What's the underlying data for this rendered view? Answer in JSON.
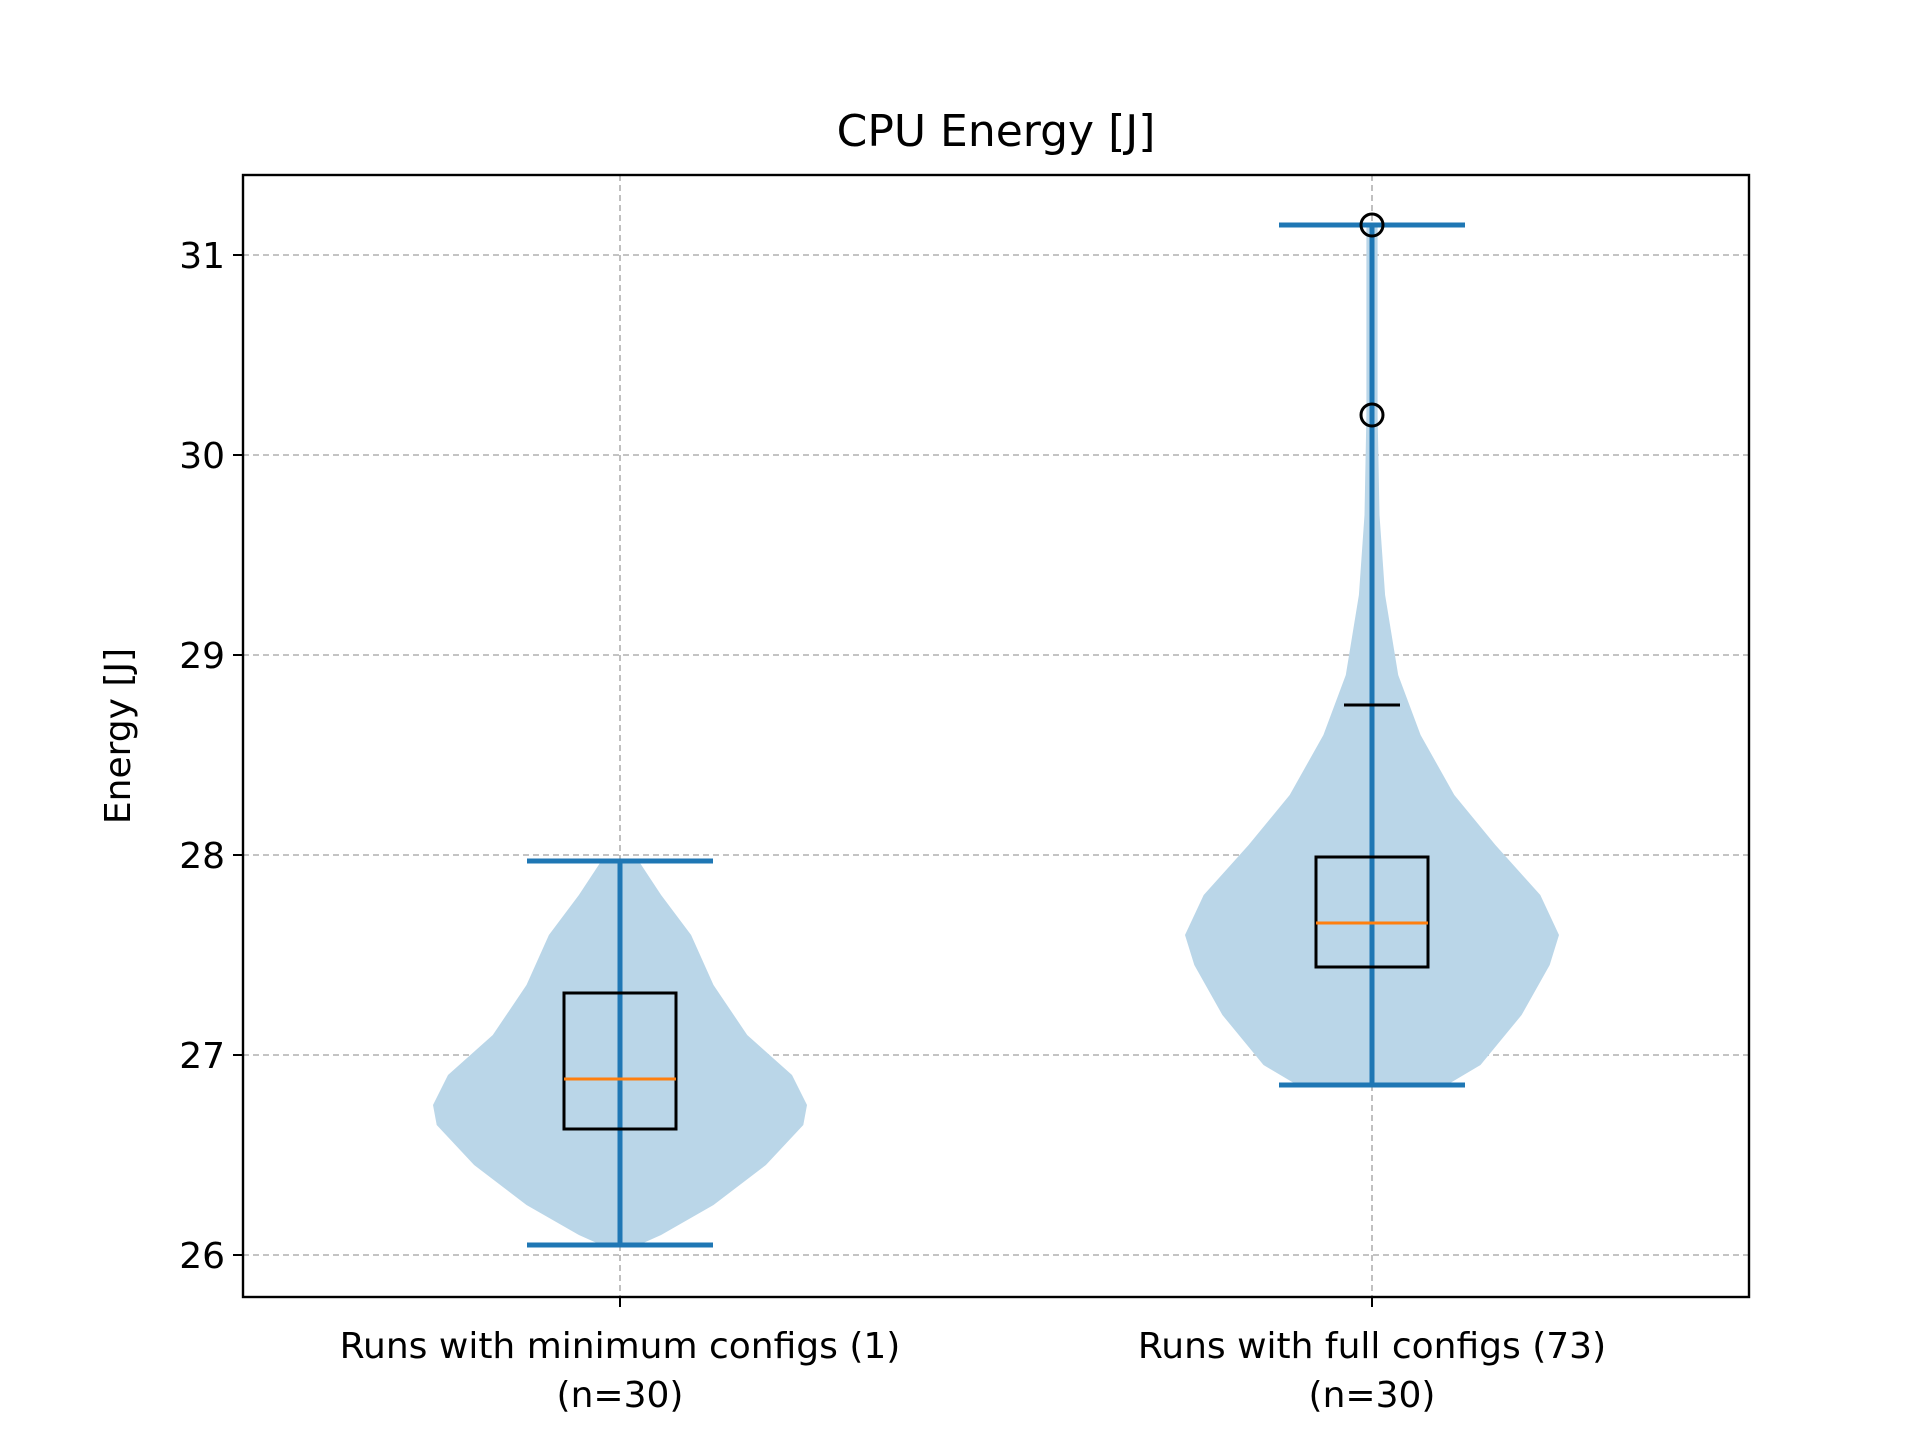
{
  "chart_data": {
    "type": "violin",
    "title": "CPU Energy [J]",
    "ylabel": "Energy [J]",
    "xlabel": "",
    "ylim": [
      25.79,
      31.4
    ],
    "yticks": [
      26,
      27,
      28,
      29,
      30,
      31
    ],
    "grid": true,
    "categories": [
      {
        "line1": "Runs with minimum configs (1)",
        "line2": "(n=30)"
      },
      {
        "line1": "Runs with full configs (73)",
        "line2": "(n=30)"
      }
    ],
    "series": [
      {
        "min": 26.05,
        "max": 27.97,
        "q1": 26.63,
        "median": 26.88,
        "q3": 27.31,
        "whisker_low": 26.05,
        "whisker_high": 27.97,
        "outliers": [],
        "density": [
          [
            26.05,
            0.1
          ],
          [
            26.1,
            0.22
          ],
          [
            26.25,
            0.5
          ],
          [
            26.45,
            0.78
          ],
          [
            26.65,
            0.98
          ],
          [
            26.75,
            1.0
          ],
          [
            26.9,
            0.92
          ],
          [
            27.1,
            0.68
          ],
          [
            27.35,
            0.5
          ],
          [
            27.6,
            0.38
          ],
          [
            27.8,
            0.22
          ],
          [
            27.97,
            0.1
          ]
        ]
      },
      {
        "min": 26.85,
        "max": 31.15,
        "q1": 27.44,
        "median": 27.66,
        "q3": 27.99,
        "whisker_low": 26.85,
        "whisker_high": 28.75,
        "outliers": [
          30.2,
          31.15
        ],
        "density": [
          [
            26.85,
            0.4
          ],
          [
            26.95,
            0.58
          ],
          [
            27.2,
            0.8
          ],
          [
            27.45,
            0.95
          ],
          [
            27.6,
            1.0
          ],
          [
            27.8,
            0.9
          ],
          [
            28.05,
            0.66
          ],
          [
            28.3,
            0.44
          ],
          [
            28.6,
            0.26
          ],
          [
            28.9,
            0.14
          ],
          [
            29.3,
            0.07
          ],
          [
            29.7,
            0.04
          ],
          [
            30.2,
            0.03
          ],
          [
            30.8,
            0.03
          ],
          [
            31.15,
            0.03
          ]
        ]
      }
    ],
    "colors": {
      "violin_fill": "#bad6e8",
      "violin_lines": "#1f77b4",
      "box": "#000000",
      "median": "#ff7f0e"
    }
  }
}
